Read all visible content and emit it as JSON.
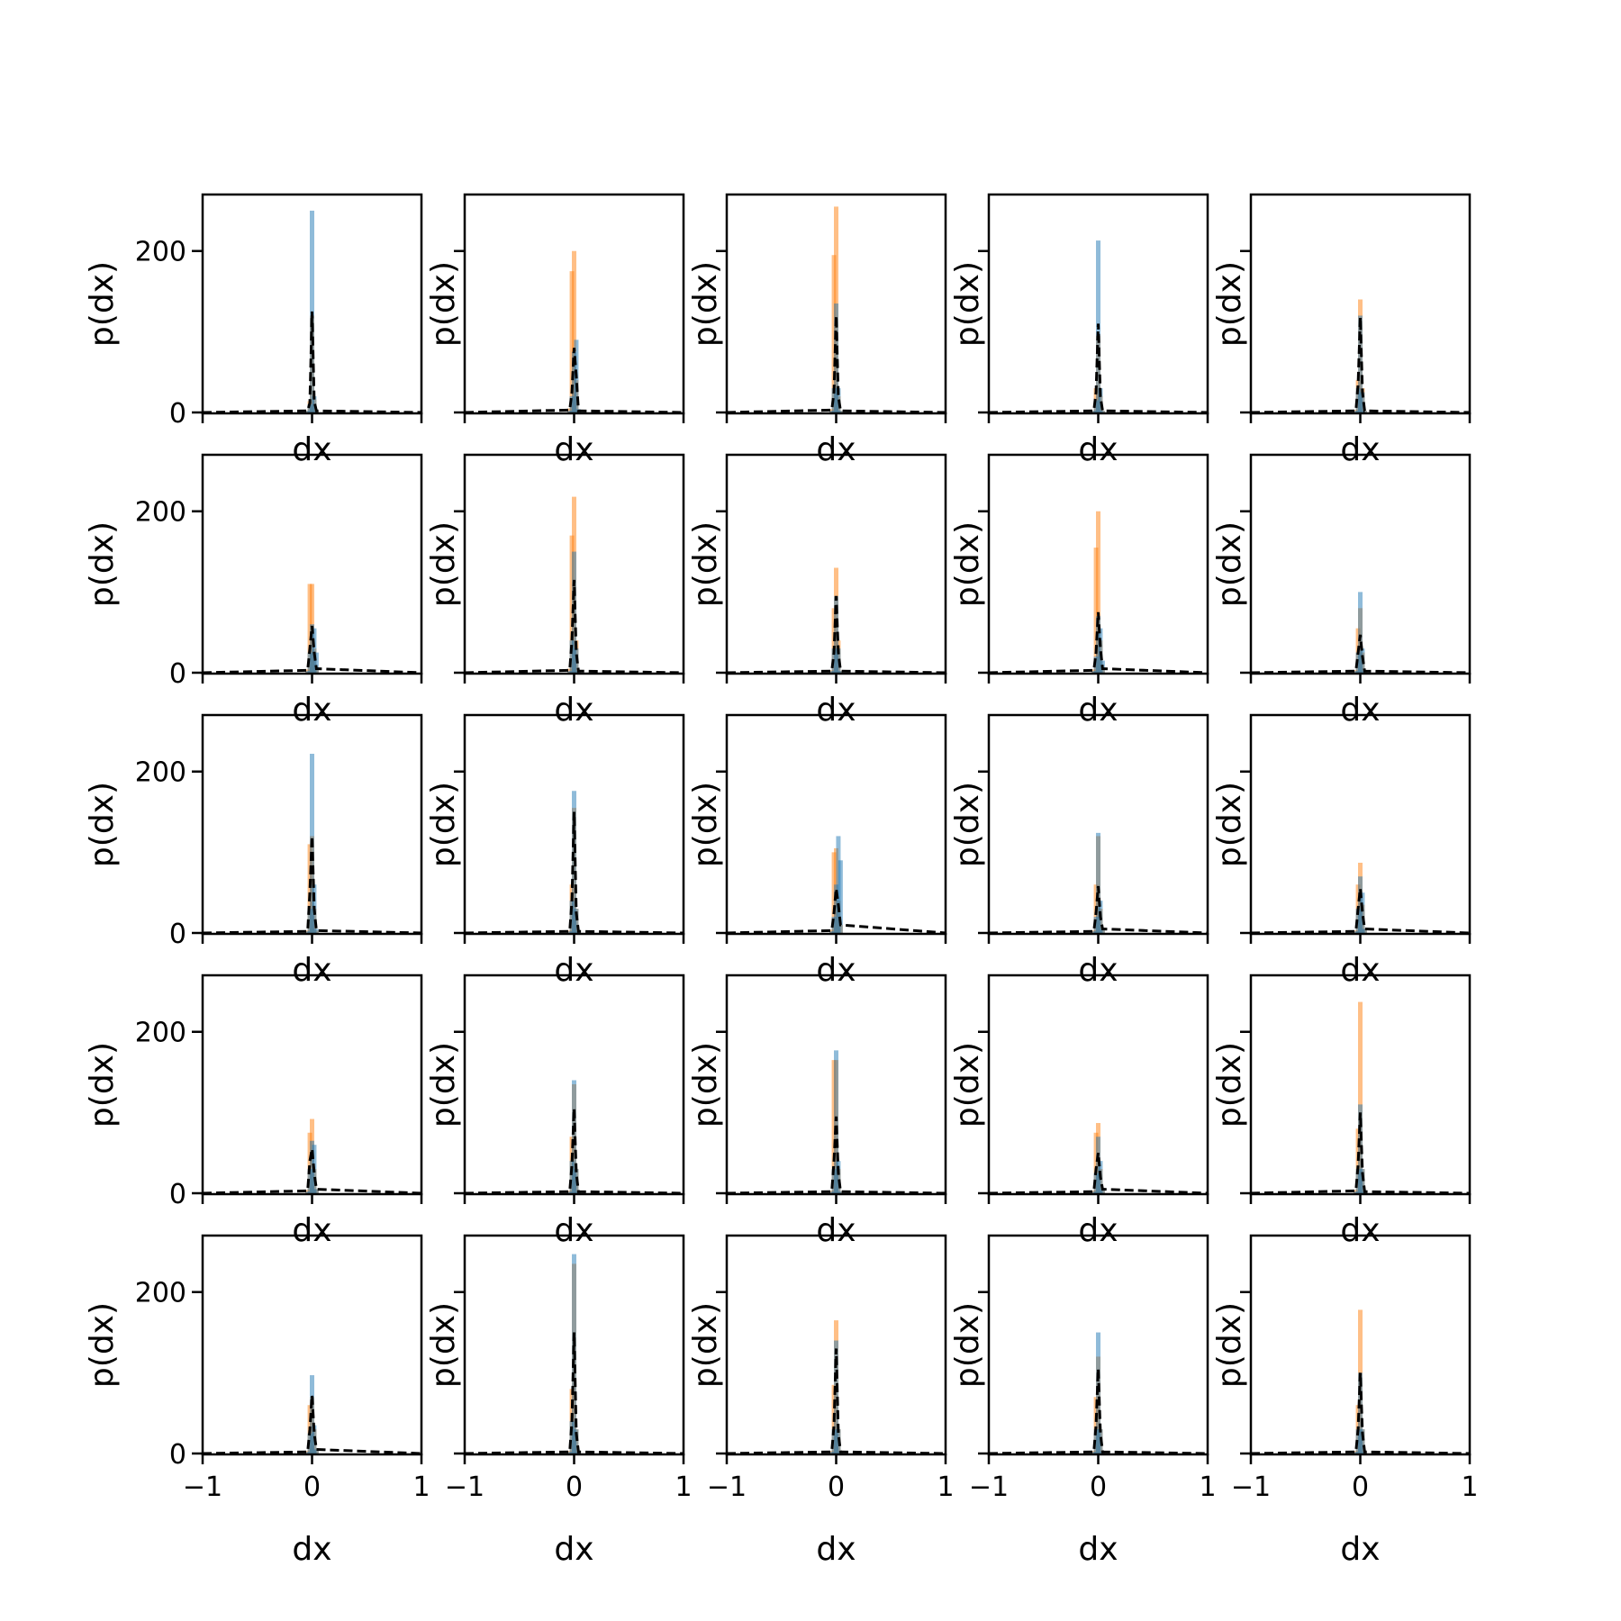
{
  "colors": {
    "series1": "#1f77b4",
    "series2": "#ff7f0e",
    "dashed": "#000000"
  },
  "chart_data": {
    "type": "bar",
    "layout": "grid 5x5, shared axes",
    "xlabel": "dx",
    "ylabel": "p(dx)",
    "xlim": [
      -1,
      1
    ],
    "ylim": [
      0,
      270
    ],
    "xticks": [
      -1,
      0,
      1
    ],
    "xtick_labels": [
      "−1",
      "0",
      "1"
    ],
    "yticks": [
      0,
      200
    ],
    "ytick_labels": [
      "0",
      "200"
    ],
    "grid": false,
    "legend": "none",
    "series_styles": [
      "histogram blue alpha 0.5",
      "histogram orange alpha 0.5",
      "dashed black line"
    ],
    "panels": [
      {
        "row": 0,
        "col": 0,
        "x": [
          -0.04,
          -0.02,
          0.0,
          0.02,
          0.04
        ],
        "s1": [
          2,
          10,
          250,
          20,
          2
        ],
        "s2": [
          2,
          14,
          120,
          16,
          2
        ],
        "s3": [
          2,
          12,
          125,
          14,
          2
        ]
      },
      {
        "row": 0,
        "col": 1,
        "x": [
          -0.04,
          -0.02,
          0.0,
          0.02,
          0.04
        ],
        "s1": [
          2,
          20,
          75,
          90,
          4
        ],
        "s2": [
          5,
          175,
          200,
          40,
          2
        ],
        "s3": [
          3,
          25,
          80,
          45,
          2
        ]
      },
      {
        "row": 0,
        "col": 2,
        "x": [
          -0.04,
          -0.02,
          0.0,
          0.02,
          0.04
        ],
        "s1": [
          2,
          30,
          135,
          30,
          2
        ],
        "s2": [
          4,
          195,
          255,
          20,
          2
        ],
        "s3": [
          3,
          25,
          120,
          20,
          2
        ]
      },
      {
        "row": 0,
        "col": 3,
        "x": [
          -0.04,
          -0.02,
          0.0,
          0.02,
          0.04
        ],
        "s1": [
          2,
          15,
          213,
          30,
          2
        ],
        "s2": [
          2,
          30,
          95,
          20,
          2
        ],
        "s3": [
          2,
          25,
          110,
          20,
          2
        ]
      },
      {
        "row": 0,
        "col": 4,
        "x": [
          -0.04,
          -0.02,
          0.0,
          0.02,
          0.04
        ],
        "s1": [
          2,
          30,
          120,
          25,
          2
        ],
        "s2": [
          3,
          40,
          140,
          30,
          2
        ],
        "s3": [
          2,
          35,
          118,
          25,
          2
        ]
      },
      {
        "row": 1,
        "col": 0,
        "x": [
          -0.04,
          -0.02,
          0.0,
          0.02,
          0.04
        ],
        "s1": [
          2,
          25,
          60,
          55,
          25
        ],
        "s2": [
          4,
          110,
          110,
          30,
          5
        ],
        "s3": [
          3,
          30,
          58,
          25,
          5
        ]
      },
      {
        "row": 1,
        "col": 1,
        "x": [
          -0.04,
          -0.02,
          0.0,
          0.02,
          0.04
        ],
        "s1": [
          2,
          40,
          150,
          30,
          2
        ],
        "s2": [
          5,
          170,
          218,
          40,
          2
        ],
        "s3": [
          3,
          40,
          115,
          25,
          2
        ]
      },
      {
        "row": 1,
        "col": 2,
        "x": [
          -0.04,
          -0.02,
          0.0,
          0.02,
          0.04
        ],
        "s1": [
          2,
          30,
          95,
          30,
          2
        ],
        "s2": [
          3,
          80,
          130,
          40,
          2
        ],
        "s3": [
          2,
          25,
          95,
          25,
          2
        ]
      },
      {
        "row": 1,
        "col": 3,
        "x": [
          -0.04,
          -0.02,
          0.0,
          0.02,
          0.04
        ],
        "s1": [
          2,
          20,
          70,
          55,
          15
        ],
        "s2": [
          4,
          155,
          200,
          40,
          5
        ],
        "s3": [
          3,
          25,
          75,
          30,
          5
        ]
      },
      {
        "row": 1,
        "col": 4,
        "x": [
          -0.04,
          -0.02,
          0.0,
          0.02,
          0.04
        ],
        "s1": [
          2,
          25,
          100,
          30,
          2
        ],
        "s2": [
          3,
          55,
          80,
          25,
          2
        ],
        "s3": [
          2,
          25,
          47,
          20,
          2
        ]
      },
      {
        "row": 2,
        "col": 0,
        "x": [
          -0.04,
          -0.02,
          0.0,
          0.02,
          0.04
        ],
        "s1": [
          2,
          30,
          222,
          60,
          5
        ],
        "s2": [
          3,
          110,
          120,
          30,
          3
        ],
        "s3": [
          2,
          50,
          120,
          30,
          3
        ]
      },
      {
        "row": 2,
        "col": 1,
        "x": [
          -0.04,
          -0.02,
          0.0,
          0.02,
          0.04
        ],
        "s1": [
          2,
          40,
          176,
          30,
          2
        ],
        "s2": [
          3,
          60,
          155,
          30,
          2
        ],
        "s3": [
          2,
          40,
          150,
          25,
          2
        ]
      },
      {
        "row": 2,
        "col": 2,
        "x": [
          -0.04,
          -0.02,
          0.0,
          0.02,
          0.04
        ],
        "s1": [
          2,
          20,
          60,
          120,
          90
        ],
        "s2": [
          4,
          100,
          105,
          40,
          10
        ],
        "s3": [
          3,
          25,
          55,
          35,
          10
        ]
      },
      {
        "row": 2,
        "col": 3,
        "x": [
          -0.04,
          -0.02,
          0.0,
          0.02,
          0.04
        ],
        "s1": [
          2,
          20,
          124,
          40,
          5
        ],
        "s2": [
          3,
          60,
          120,
          30,
          5
        ],
        "s3": [
          2,
          25,
          58,
          20,
          5
        ]
      },
      {
        "row": 2,
        "col": 4,
        "x": [
          -0.04,
          -0.02,
          0.0,
          0.02,
          0.04
        ],
        "s1": [
          2,
          30,
          70,
          50,
          5
        ],
        "s2": [
          3,
          60,
          87,
          35,
          5
        ],
        "s3": [
          2,
          30,
          55,
          25,
          5
        ]
      },
      {
        "row": 3,
        "col": 0,
        "x": [
          -0.04,
          -0.02,
          0.0,
          0.02,
          0.04
        ],
        "s1": [
          2,
          30,
          65,
          60,
          5
        ],
        "s2": [
          4,
          75,
          92,
          30,
          5
        ],
        "s3": [
          3,
          40,
          55,
          25,
          5
        ]
      },
      {
        "row": 3,
        "col": 1,
        "x": [
          -0.04,
          -0.02,
          0.0,
          0.02,
          0.04
        ],
        "s1": [
          2,
          40,
          140,
          30,
          2
        ],
        "s2": [
          3,
          70,
          135,
          30,
          2
        ],
        "s3": [
          2,
          35,
          105,
          25,
          2
        ]
      },
      {
        "row": 3,
        "col": 2,
        "x": [
          -0.04,
          -0.02,
          0.0,
          0.02,
          0.04
        ],
        "s1": [
          2,
          30,
          177,
          40,
          2
        ],
        "s2": [
          3,
          165,
          165,
          30,
          2
        ],
        "s3": [
          2,
          40,
          95,
          25,
          2
        ]
      },
      {
        "row": 3,
        "col": 3,
        "x": [
          -0.04,
          -0.02,
          0.0,
          0.02,
          0.04
        ],
        "s1": [
          2,
          25,
          70,
          40,
          5
        ],
        "s2": [
          3,
          75,
          87,
          30,
          5
        ],
        "s3": [
          2,
          30,
          50,
          20,
          5
        ]
      },
      {
        "row": 3,
        "col": 4,
        "x": [
          -0.04,
          -0.02,
          0.0,
          0.02,
          0.04
        ],
        "s1": [
          2,
          30,
          110,
          30,
          2
        ],
        "s2": [
          4,
          80,
          237,
          30,
          2
        ],
        "s3": [
          3,
          35,
          100,
          25,
          2
        ]
      },
      {
        "row": 4,
        "col": 0,
        "x": [
          -0.04,
          -0.02,
          0.0,
          0.02,
          0.04
        ],
        "s1": [
          2,
          25,
          97,
          35,
          5
        ],
        "s2": [
          3,
          60,
          70,
          30,
          5
        ],
        "s3": [
          2,
          30,
          72,
          25,
          5
        ]
      },
      {
        "row": 4,
        "col": 1,
        "x": [
          -0.04,
          -0.02,
          0.0,
          0.02,
          0.04
        ],
        "s1": [
          2,
          40,
          247,
          30,
          2
        ],
        "s2": [
          3,
          80,
          235,
          30,
          2
        ],
        "s3": [
          2,
          40,
          150,
          25,
          2
        ]
      },
      {
        "row": 4,
        "col": 2,
        "x": [
          -0.04,
          -0.02,
          0.0,
          0.02,
          0.04
        ],
        "s1": [
          2,
          30,
          140,
          30,
          2
        ],
        "s2": [
          3,
          85,
          165,
          30,
          2
        ],
        "s3": [
          2,
          35,
          130,
          25,
          2
        ]
      },
      {
        "row": 4,
        "col": 3,
        "x": [
          -0.04,
          -0.02,
          0.0,
          0.02,
          0.04
        ],
        "s1": [
          2,
          30,
          150,
          30,
          2
        ],
        "s2": [
          3,
          70,
          120,
          30,
          2
        ],
        "s3": [
          2,
          35,
          105,
          25,
          2
        ]
      },
      {
        "row": 4,
        "col": 4,
        "x": [
          -0.04,
          -0.02,
          0.0,
          0.02,
          0.04
        ],
        "s1": [
          2,
          30,
          100,
          30,
          2
        ],
        "s2": [
          3,
          60,
          178,
          30,
          2
        ],
        "s3": [
          2,
          30,
          100,
          25,
          2
        ]
      }
    ]
  }
}
